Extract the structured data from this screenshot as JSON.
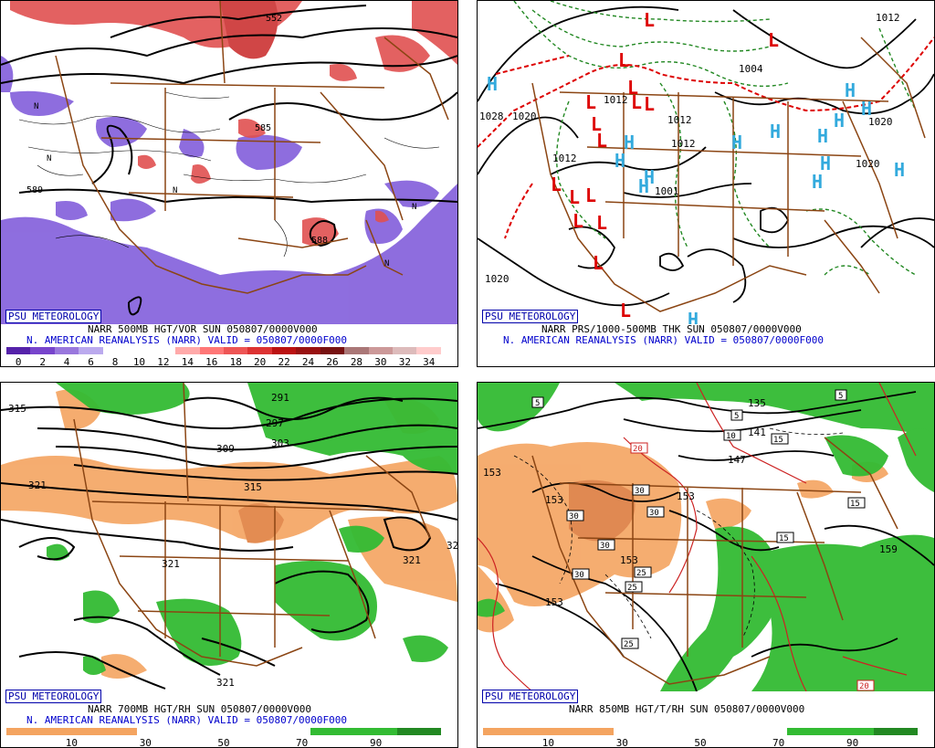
{
  "colors": {
    "brown_borders": "#8b4513",
    "vort_purple": "#8866dd",
    "vort_red": "#e05050",
    "rh_green": "#33bb33",
    "rh_orange": "#f4a460",
    "high_blue": "#33aadd",
    "low_red": "#dd0000",
    "thickness_green": "#228822",
    "thickness_red": "#dd0000",
    "badge_blue": "#0000aa"
  },
  "panels": [
    {
      "id": "500mb",
      "badge": "PSU METEOROLOGY",
      "caption_line1": "NARR 500MB HGT/VOR SUN 050807/0000V000",
      "caption_line2": "N. AMERICAN REANALYSIS (NARR) VALID = 050807/0000F000",
      "colorbar_ticks": [
        "0",
        "2",
        "4",
        "6",
        "8",
        "10",
        "12",
        "14",
        "16",
        "18",
        "20",
        "22",
        "24",
        "26",
        "28",
        "30",
        "32",
        "34"
      ],
      "colorbar_colors": [
        "#5522aa",
        "#7744cc",
        "#9977dd",
        "#bbaaee",
        "#ffffff",
        "#ffffff",
        "#ffffff",
        "#ffaaaa",
        "#ff7777",
        "#ee5555",
        "#dd3333",
        "#bb1111",
        "#991111",
        "#771111",
        "#aa7777",
        "#cc9999",
        "#ddbbbb",
        "#ffcccc"
      ],
      "contour_labels": [
        "552",
        "589",
        "588",
        "585"
      ]
    },
    {
      "id": "sfc",
      "badge": "PSU METEOROLOGY",
      "caption_line1": "NARR PRS/1000-500MB THK SUN 050807/0000V000",
      "caption_line2": "N. AMERICAN REANALYSIS (NARR) VALID = 050807/0000F000",
      "isobar_labels": [
        "1012",
        "1004",
        "1020",
        "1020",
        "1012",
        "1012",
        "1012",
        "1001",
        "1028",
        "1020",
        "1020",
        "1012"
      ],
      "high_label": "H",
      "low_label": "L"
    },
    {
      "id": "700mb",
      "badge": "PSU METEOROLOGY",
      "caption_line1": "NARR 700MB HGT/RH SUN 050807/0000V000",
      "caption_line2": "N. AMERICAN REANALYSIS (NARR) VALID = 050807/0000F000",
      "colorbar_ticks": [
        "10",
        "30",
        "50",
        "70",
        "90"
      ],
      "contour_labels": [
        "315",
        "291",
        "297",
        "303",
        "309",
        "315",
        "321",
        "321",
        "321",
        "321",
        "32"
      ]
    },
    {
      "id": "850mb",
      "badge": "PSU METEOROLOGY",
      "caption_line1": "NARR 850MB HGT/T/RH SUN 050807/0000V000",
      "colorbar_ticks": [
        "10",
        "30",
        "50",
        "70",
        "90"
      ],
      "contour_labels": [
        "153",
        "153",
        "153",
        "147",
        "153",
        "153",
        "159",
        "135",
        "141"
      ],
      "temp_labels": [
        "5",
        "5",
        "20",
        "10",
        "30",
        "30",
        "30",
        "30",
        "30",
        "25",
        "25",
        "25",
        "15",
        "15",
        "15",
        "20",
        "5"
      ]
    }
  ]
}
